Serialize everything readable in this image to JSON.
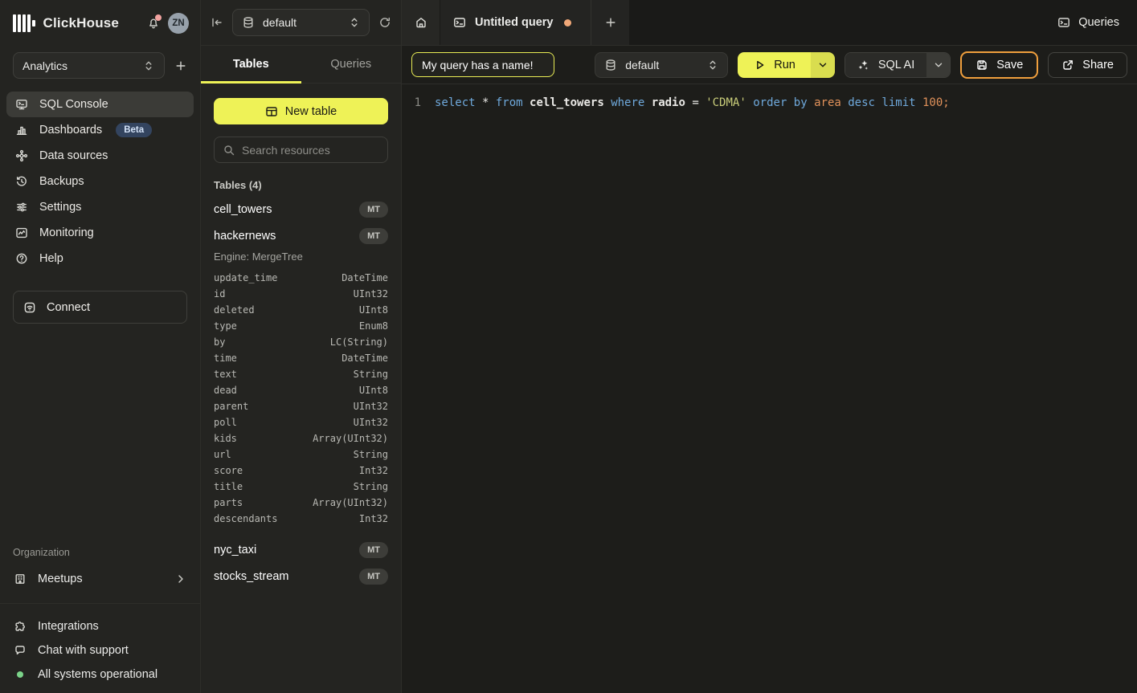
{
  "app": {
    "brand": "ClickHouse"
  },
  "colors": {
    "accent_yellow": "#eef257",
    "run_chevron_yellow": "#d9dd4f",
    "save_border_orange": "#f09f3d",
    "unsaved_dot_orange": "#f0a878",
    "notification_dot_pink": "#f2a3a0",
    "status_green": "#7bd389",
    "beta_badge_bg": "#33445f",
    "beta_badge_text": "#d4e3f8",
    "code_keyword_blue": "#6fa9dc",
    "code_string_olive": "#c9cd7a",
    "code_number_orange": "#e0915a"
  },
  "sidebar": {
    "brand": "ClickHouse",
    "avatar_initials": "ZN",
    "workspace": {
      "value": "Analytics"
    },
    "nav": [
      {
        "label": "SQL Console",
        "icon": "sql-console",
        "active": true
      },
      {
        "label": "Dashboards",
        "icon": "dashboards",
        "badge": "Beta"
      },
      {
        "label": "Data sources",
        "icon": "data-sources"
      },
      {
        "label": "Backups",
        "icon": "backups"
      },
      {
        "label": "Settings",
        "icon": "settings"
      },
      {
        "label": "Monitoring",
        "icon": "monitoring"
      },
      {
        "label": "Help",
        "icon": "help"
      }
    ],
    "connect_label": "Connect",
    "organization": {
      "label": "Organization",
      "items": [
        {
          "label": "Meetups",
          "icon": "meetups",
          "chevron": true
        }
      ]
    },
    "footer": [
      {
        "label": "Integrations",
        "icon": "integrations"
      },
      {
        "label": "Chat with support",
        "icon": "chat"
      },
      {
        "label": "All systems operational",
        "icon": "status-dot"
      }
    ]
  },
  "resources": {
    "database": "default",
    "tabs": [
      {
        "label": "Tables",
        "active": true
      },
      {
        "label": "Queries",
        "active": false
      }
    ],
    "new_table_label": "New table",
    "search_placeholder": "Search resources",
    "section_label": "Tables (4)",
    "tables": [
      {
        "name": "cell_towers",
        "badge": "MT"
      },
      {
        "name": "hackernews",
        "badge": "MT",
        "engine": "Engine: MergeTree",
        "columns": [
          {
            "name": "update_time",
            "type": "DateTime"
          },
          {
            "name": "id",
            "type": "UInt32"
          },
          {
            "name": "deleted",
            "type": "UInt8"
          },
          {
            "name": "type",
            "type": "Enum8"
          },
          {
            "name": "by",
            "type": "LC(String)"
          },
          {
            "name": "time",
            "type": "DateTime"
          },
          {
            "name": "text",
            "type": "String"
          },
          {
            "name": "dead",
            "type": "UInt8"
          },
          {
            "name": "parent",
            "type": "UInt32"
          },
          {
            "name": "poll",
            "type": "UInt32"
          },
          {
            "name": "kids",
            "type": "Array(UInt32)"
          },
          {
            "name": "url",
            "type": "String"
          },
          {
            "name": "score",
            "type": "Int32"
          },
          {
            "name": "title",
            "type": "String"
          },
          {
            "name": "parts",
            "type": "Array(UInt32)"
          },
          {
            "name": "descendants",
            "type": "Int32"
          }
        ]
      },
      {
        "name": "nyc_taxi",
        "badge": "MT"
      },
      {
        "name": "stocks_stream",
        "badge": "MT"
      }
    ]
  },
  "workspace_tabs": {
    "active_tab": {
      "label": "Untitled query",
      "unsaved": true
    },
    "queries_button": "Queries"
  },
  "toolbar": {
    "query_name_value": "My query has a name!",
    "database": "default",
    "run_label": "Run",
    "sql_ai_label": "SQL AI",
    "save_label": "Save",
    "share_label": "Share"
  },
  "editor": {
    "lines": [
      {
        "number": "1",
        "tokens": [
          {
            "text": "select ",
            "cls": "kw"
          },
          {
            "text": "* ",
            "cls": "pl"
          },
          {
            "text": "from ",
            "cls": "kw"
          },
          {
            "text": "cell_towers ",
            "cls": "id"
          },
          {
            "text": "where ",
            "cls": "kw"
          },
          {
            "text": "radio ",
            "cls": "id"
          },
          {
            "text": "= ",
            "cls": "pl"
          },
          {
            "text": "'CDMA' ",
            "cls": "str"
          },
          {
            "text": "order ",
            "cls": "kw"
          },
          {
            "text": "by ",
            "cls": "kw"
          },
          {
            "text": "area ",
            "cls": "num"
          },
          {
            "text": "desc ",
            "cls": "kw"
          },
          {
            "text": "limit ",
            "cls": "kw"
          },
          {
            "text": "100;",
            "cls": "num"
          }
        ]
      }
    ]
  }
}
